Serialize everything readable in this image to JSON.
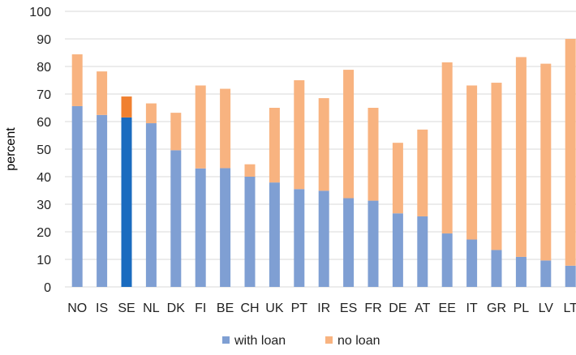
{
  "chart_data": {
    "type": "bar",
    "stacked": true,
    "ylabel": "percent",
    "ylim": [
      0,
      100
    ],
    "yticks": [
      0,
      10,
      20,
      30,
      40,
      50,
      60,
      70,
      80,
      90,
      100
    ],
    "grid": true,
    "legend": "bottom",
    "categories": [
      "NO",
      "IS",
      "SE",
      "NL",
      "DK",
      "FI",
      "BE",
      "CH",
      "UK",
      "PT",
      "IR",
      "ES",
      "FR",
      "DE",
      "AT",
      "EE",
      "IT",
      "GR",
      "PL",
      "LV",
      "LT"
    ],
    "highlight_category": "SE",
    "series": [
      {
        "name": "with loan",
        "color": "#7f9fd3",
        "highlight_color": "#1a6bbf",
        "values": [
          65.6,
          62.4,
          61.5,
          59.4,
          49.6,
          43.0,
          43.1,
          40.0,
          37.9,
          35.5,
          34.9,
          32.2,
          31.3,
          26.7,
          25.6,
          19.4,
          17.2,
          13.4,
          10.9,
          9.6,
          7.7
        ]
      },
      {
        "name": "no loan",
        "color": "#f8b380",
        "highlight_color": "#f08030",
        "values": [
          18.8,
          15.8,
          7.6,
          7.2,
          13.6,
          30.1,
          28.8,
          4.5,
          27.1,
          39.5,
          33.6,
          46.6,
          33.7,
          25.6,
          31.5,
          62.1,
          55.9,
          60.7,
          72.5,
          71.4,
          82.3
        ]
      }
    ]
  }
}
